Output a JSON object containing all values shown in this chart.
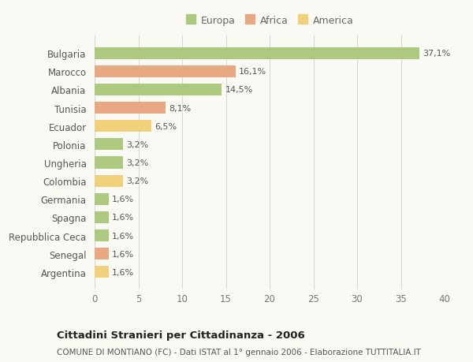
{
  "countries": [
    "Bulgaria",
    "Marocco",
    "Albania",
    "Tunisia",
    "Ecuador",
    "Polonia",
    "Ungheria",
    "Colombia",
    "Germania",
    "Spagna",
    "Repubblica Ceca",
    "Senegal",
    "Argentina"
  ],
  "values": [
    37.1,
    16.1,
    14.5,
    8.1,
    6.5,
    3.2,
    3.2,
    3.2,
    1.6,
    1.6,
    1.6,
    1.6,
    1.6
  ],
  "labels": [
    "37,1%",
    "16,1%",
    "14,5%",
    "8,1%",
    "6,5%",
    "3,2%",
    "3,2%",
    "3,2%",
    "1,6%",
    "1,6%",
    "1,6%",
    "1,6%",
    "1,6%"
  ],
  "continents": [
    "Europa",
    "Africa",
    "Europa",
    "Africa",
    "America",
    "Europa",
    "Europa",
    "America",
    "Europa",
    "Europa",
    "Europa",
    "Africa",
    "America"
  ],
  "colors": {
    "Europa": "#adc97f",
    "Africa": "#e8a882",
    "America": "#f0d07a"
  },
  "background_color": "#fafaf5",
  "plot_bg_color": "#fafaf5",
  "grid_color": "#d8d8d8",
  "title": "Cittadini Stranieri per Cittadinanza - 2006",
  "subtitle": "COMUNE DI MONTIANO (FC) - Dati ISTAT al 1° gennaio 2006 - Elaborazione TUTTITALIA.IT",
  "xlim": [
    0,
    40
  ],
  "xticks": [
    0,
    5,
    10,
    15,
    20,
    25,
    30,
    35,
    40
  ],
  "legend_order": [
    "Europa",
    "Africa",
    "America"
  ]
}
